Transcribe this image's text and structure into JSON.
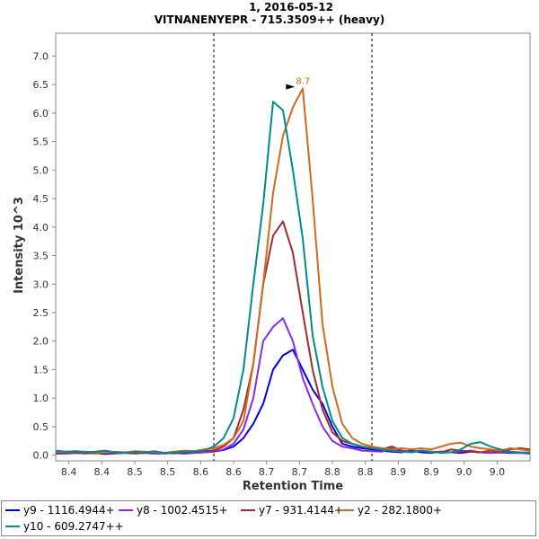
{
  "chart_data": {
    "type": "line",
    "title": "1, 2016-05-12",
    "subtitle": "VITNANENYEPR - 715.3509++ (heavy)",
    "xlabel": "Retention Time",
    "ylabel": "Intensity 10^3",
    "xlim": [
      8.38,
      9.1
    ],
    "ylim": [
      -0.1,
      7.4
    ],
    "x_ticks": [
      "8.4",
      "8.4",
      "8.5",
      "8.5",
      "8.6",
      "8.6",
      "8.7",
      "8.7",
      "8.8",
      "8.8",
      "8.9",
      "8.9",
      "9.0",
      "9.0"
    ],
    "x_tick_values": [
      8.4,
      8.45,
      8.5,
      8.55,
      8.6,
      8.65,
      8.7,
      8.75,
      8.8,
      8.85,
      8.9,
      8.95,
      9.0,
      9.05
    ],
    "y_ticks": [
      "0.0",
      "0.5",
      "1.0",
      "1.5",
      "2.0",
      "2.5",
      "3.0",
      "3.5",
      "4.0",
      "4.5",
      "5.0",
      "5.5",
      "6.0",
      "6.5",
      "7.0"
    ],
    "y_tick_values": [
      0,
      0.5,
      1.0,
      1.5,
      2.0,
      2.5,
      3.0,
      3.5,
      4.0,
      4.5,
      5.0,
      5.5,
      6.0,
      6.5,
      7.0
    ],
    "vlines": [
      8.62,
      8.86
    ],
    "annotation": {
      "text": "8.7",
      "x": 8.75,
      "y": 6.43,
      "color": "#d2691e"
    },
    "legend_position": "bottom",
    "x": [
      8.38,
      8.395,
      8.41,
      8.425,
      8.44,
      8.455,
      8.47,
      8.485,
      8.5,
      8.515,
      8.53,
      8.545,
      8.56,
      8.575,
      8.59,
      8.605,
      8.62,
      8.635,
      8.65,
      8.665,
      8.68,
      8.695,
      8.71,
      8.725,
      8.74,
      8.755,
      8.77,
      8.785,
      8.8,
      8.815,
      8.83,
      8.845,
      8.86,
      8.875,
      8.89,
      8.905,
      8.92,
      8.935,
      8.95,
      8.965,
      8.98,
      8.995,
      9.01,
      9.025,
      9.04,
      9.055,
      9.07,
      9.085,
      9.1
    ],
    "series": [
      {
        "name": "y9 - 1116.4944+",
        "color": "#0000e0",
        "values": [
          0.03,
          0.03,
          0.04,
          0.03,
          0.04,
          0.02,
          0.03,
          0.04,
          0.03,
          0.04,
          0.03,
          0.03,
          0.04,
          0.03,
          0.04,
          0.05,
          0.06,
          0.09,
          0.15,
          0.3,
          0.55,
          0.9,
          1.5,
          1.75,
          1.85,
          1.5,
          1.15,
          0.9,
          0.5,
          0.2,
          0.15,
          0.12,
          0.1,
          0.08,
          0.06,
          0.05,
          0.08,
          0.05,
          0.04,
          0.06,
          0.05,
          0.04,
          0.06,
          0.05,
          0.04,
          0.05,
          0.04,
          0.04,
          0.03
        ]
      },
      {
        "name": "y8 - 1002.4515+",
        "color": "#8a2be2",
        "values": [
          0.04,
          0.05,
          0.04,
          0.03,
          0.05,
          0.04,
          0.03,
          0.05,
          0.04,
          0.04,
          0.05,
          0.03,
          0.04,
          0.05,
          0.04,
          0.05,
          0.06,
          0.1,
          0.2,
          0.45,
          1.0,
          2.0,
          2.25,
          2.4,
          2.0,
          1.35,
          0.9,
          0.5,
          0.25,
          0.15,
          0.12,
          0.08,
          0.07,
          0.06,
          0.12,
          0.08,
          0.06,
          0.08,
          0.05,
          0.06,
          0.05,
          0.06,
          0.08,
          0.05,
          0.04,
          0.06,
          0.05,
          0.04,
          0.05
        ]
      },
      {
        "name": "y7 - 931.4144+",
        "color": "#a52a2a",
        "values": [
          0.05,
          0.04,
          0.05,
          0.04,
          0.03,
          0.05,
          0.04,
          0.05,
          0.03,
          0.04,
          0.05,
          0.04,
          0.03,
          0.05,
          0.06,
          0.07,
          0.08,
          0.15,
          0.3,
          0.8,
          1.6,
          3.0,
          3.85,
          4.1,
          3.55,
          2.5,
          1.5,
          0.8,
          0.4,
          0.25,
          0.2,
          0.15,
          0.12,
          0.1,
          0.15,
          0.08,
          0.05,
          0.08,
          0.06,
          0.05,
          0.1,
          0.08,
          0.06,
          0.05,
          0.08,
          0.06,
          0.1,
          0.12,
          0.1
        ]
      },
      {
        "name": "y2 - 282.1800+",
        "color": "#d2691e",
        "values": [
          0.06,
          0.05,
          0.07,
          0.06,
          0.05,
          0.04,
          0.06,
          0.05,
          0.07,
          0.06,
          0.05,
          0.04,
          0.06,
          0.08,
          0.07,
          0.1,
          0.12,
          0.18,
          0.3,
          0.6,
          1.6,
          3.0,
          4.6,
          5.6,
          6.1,
          6.43,
          4.5,
          2.3,
          1.2,
          0.55,
          0.3,
          0.2,
          0.15,
          0.12,
          0.1,
          0.12,
          0.1,
          0.12,
          0.1,
          0.15,
          0.2,
          0.22,
          0.15,
          0.12,
          0.1,
          0.08,
          0.12,
          0.1,
          0.08
        ]
      },
      {
        "name": "y10 - 609.2747++",
        "color": "#008b8b",
        "values": [
          0.08,
          0.06,
          0.07,
          0.05,
          0.06,
          0.08,
          0.05,
          0.04,
          0.06,
          0.05,
          0.07,
          0.04,
          0.05,
          0.06,
          0.07,
          0.08,
          0.15,
          0.3,
          0.65,
          1.5,
          3.0,
          4.4,
          6.2,
          6.05,
          5.0,
          3.8,
          2.1,
          1.2,
          0.6,
          0.3,
          0.2,
          0.15,
          0.12,
          0.1,
          0.08,
          0.06,
          0.05,
          0.08,
          0.06,
          0.04,
          0.05,
          0.1,
          0.2,
          0.23,
          0.15,
          0.1,
          0.06,
          0.05,
          0.04
        ]
      }
    ]
  }
}
